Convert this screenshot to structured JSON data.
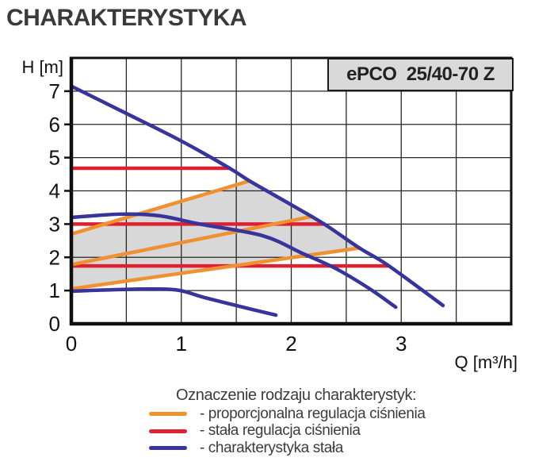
{
  "header": {
    "title": "CHARAKTERYSTYKA"
  },
  "chart_data": {
    "type": "line",
    "title": "ePCO  25/40-70 Z",
    "xlabel": "Q [m³/h]",
    "ylabel": "H [m]",
    "xlim": [
      0,
      4
    ],
    "ylim": [
      0,
      8
    ],
    "x_grid_step": 0.5,
    "y_grid_step": 1,
    "x_tick_labels": [
      "0",
      "1",
      "2",
      "3"
    ],
    "x_tick_values": [
      0,
      1,
      2,
      3
    ],
    "y_tick_labels": [
      "0",
      "1",
      "2",
      "3",
      "4",
      "5",
      "6",
      "7"
    ],
    "y_tick_values": [
      0,
      1,
      2,
      3,
      4,
      5,
      6,
      7
    ],
    "grid": true,
    "legend_position": "bottom",
    "envelope_fill": "#d8d8d8",
    "envelope": [
      [
        0,
        2.7
      ],
      [
        1.62,
        4.3
      ],
      [
        2.0,
        3.58
      ],
      [
        2.3,
        3.0
      ],
      [
        2.62,
        2.28
      ],
      [
        0,
        1.05
      ]
    ],
    "series": [
      {
        "name": "stala-regulacja-cisnienia-max",
        "mode": "stała regulacja ciśnienia",
        "shape": "straight",
        "color": "#dd2130",
        "points": [
          [
            0,
            4.68
          ],
          [
            1.44,
            4.68
          ]
        ]
      },
      {
        "name": "stala-regulacja-cisnienia-mid",
        "mode": "stała regulacja ciśnienia",
        "shape": "straight",
        "color": "#dd2130",
        "points": [
          [
            0,
            3.0
          ],
          [
            2.3,
            3.0
          ]
        ]
      },
      {
        "name": "stala-regulacja-cisnienia-min",
        "mode": "stała regulacja ciśnienia",
        "shape": "straight",
        "color": "#dd2130",
        "points": [
          [
            0,
            1.74
          ],
          [
            2.88,
            1.74
          ]
        ]
      },
      {
        "name": "proporcjonalna-regulacja-max",
        "mode": "proporcjonalna regulacja ciśnienia",
        "shape": "straight",
        "color": "#ef9130",
        "points": [
          [
            0,
            2.7
          ],
          [
            1.62,
            4.3
          ]
        ]
      },
      {
        "name": "proporcjonalna-regulacja-mid",
        "mode": "proporcjonalna regulacja ciśnienia",
        "shape": "straight",
        "color": "#ef9130",
        "points": [
          [
            0,
            1.78
          ],
          [
            2.19,
            3.23
          ]
        ]
      },
      {
        "name": "proporcjonalna-regulacja-min",
        "mode": "proporcjonalna regulacja ciśnienia",
        "shape": "straight",
        "color": "#ef9130",
        "points": [
          [
            0,
            1.05
          ],
          [
            2.62,
            2.28
          ]
        ]
      },
      {
        "name": "charakterystyka-stala-max",
        "mode": "charakterystyka stała",
        "shape": "curve",
        "color": "#37349b",
        "points": [
          [
            0,
            7.15
          ],
          [
            0.5,
            6.33
          ],
          [
            1.0,
            5.5
          ],
          [
            1.44,
            4.68
          ],
          [
            1.62,
            4.3
          ],
          [
            2.0,
            3.58
          ],
          [
            2.3,
            3.0
          ],
          [
            2.62,
            2.28
          ],
          [
            2.88,
            1.76
          ],
          [
            3.38,
            0.55
          ]
        ]
      },
      {
        "name": "charakterystyka-stala-mid",
        "mode": "charakterystyka stała",
        "shape": "curve",
        "color": "#37349b",
        "points": [
          [
            0,
            3.2
          ],
          [
            0.45,
            3.3
          ],
          [
            0.8,
            3.25
          ],
          [
            1.17,
            3.0
          ],
          [
            1.74,
            2.65
          ],
          [
            2.1,
            2.12
          ],
          [
            2.4,
            1.67
          ],
          [
            2.7,
            1.08
          ],
          [
            2.95,
            0.5
          ]
        ]
      },
      {
        "name": "charakterystyka-stala-min",
        "mode": "charakterystyka stała",
        "shape": "curve",
        "color": "#37349b",
        "points": [
          [
            0,
            0.98
          ],
          [
            0.55,
            1.04
          ],
          [
            0.95,
            1.02
          ],
          [
            1.21,
            0.79
          ],
          [
            1.56,
            0.5
          ],
          [
            1.86,
            0.26
          ]
        ]
      }
    ]
  },
  "legend": {
    "title": "Oznaczenie rodzaju charakterystyk:",
    "items": [
      {
        "label": "- proporcjonalna regulacja ciśnienia",
        "color": "#ef9130"
      },
      {
        "label": "- stała regulacja ciśnienia",
        "color": "#dd2130"
      },
      {
        "label": "- charakterystyka stała",
        "color": "#37349b"
      }
    ]
  },
  "style": {
    "grid_color": "#262626",
    "border_color": "#0f0f0f",
    "text_color": "#111111"
  }
}
